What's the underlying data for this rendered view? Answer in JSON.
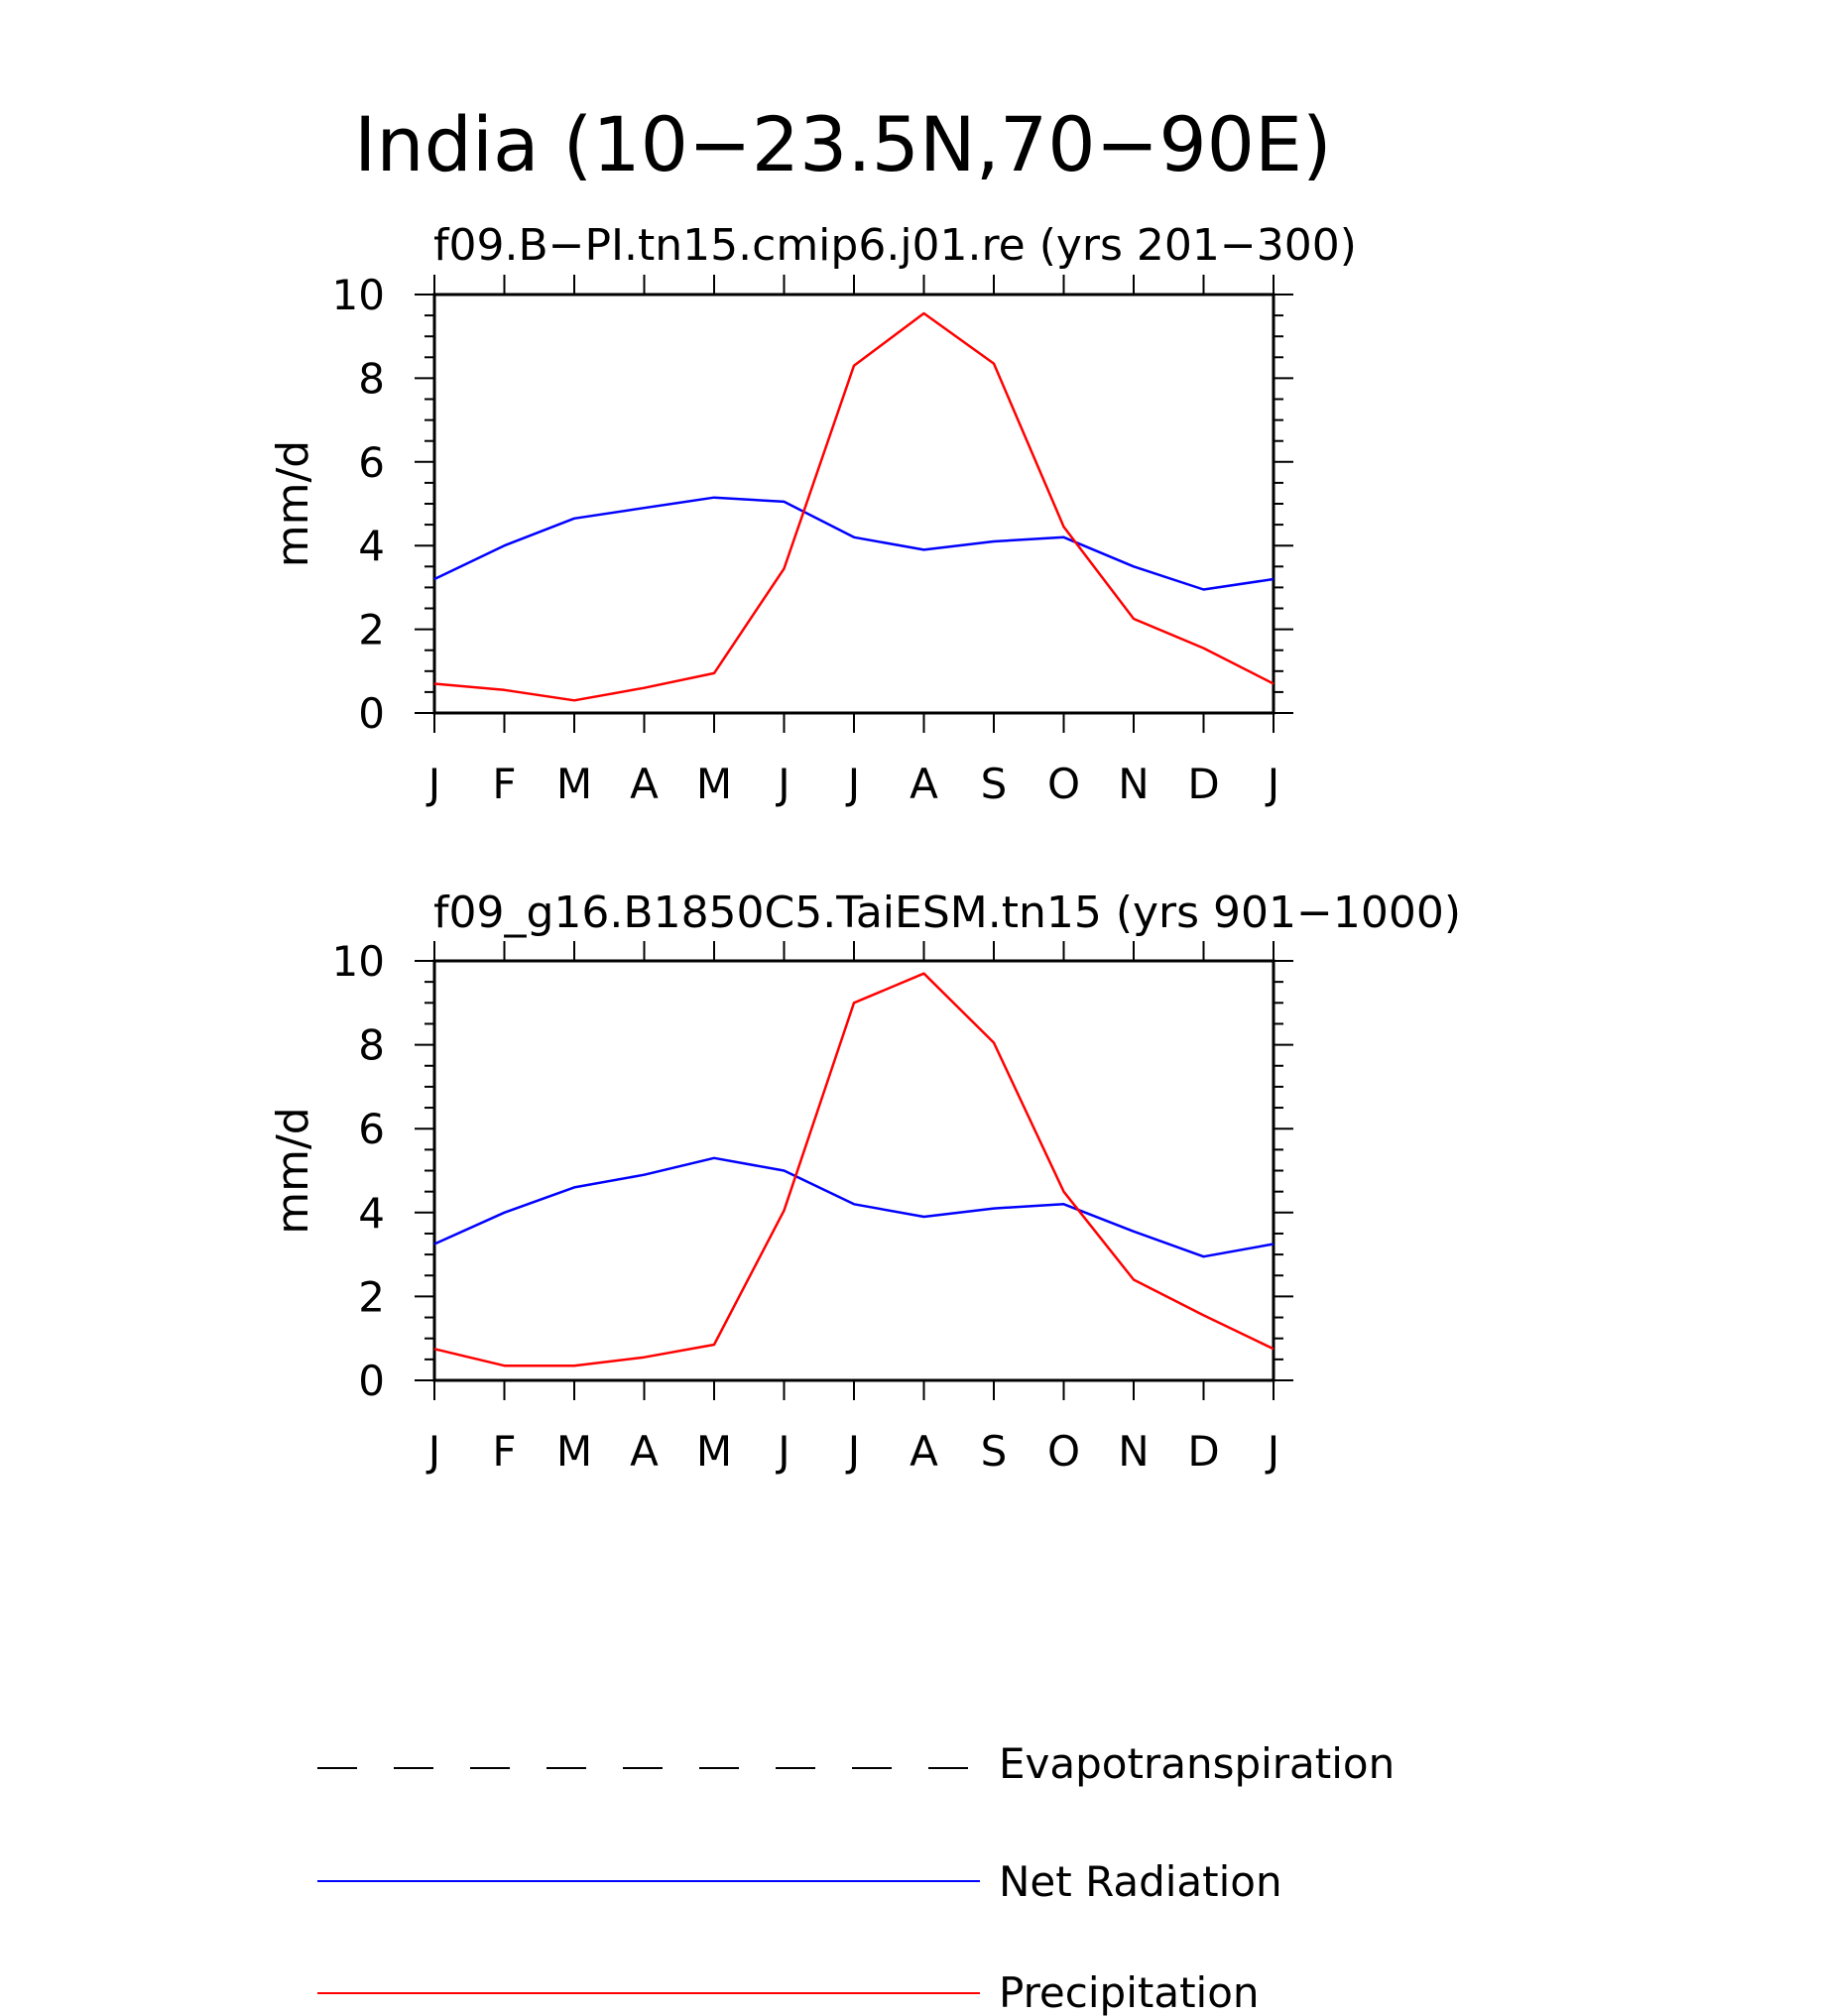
{
  "title": "India (10−23.5N,70−90E)",
  "colors": {
    "Evapotranspiration": "#000000",
    "Net Radiation": "#0000ff",
    "Precipitation": "#ff0000"
  },
  "legend": {
    "placement": "bottom",
    "entries": [
      {
        "name": "Evapotranspiration",
        "style": "dashed",
        "color": "#000000"
      },
      {
        "name": "Net Radiation",
        "style": "solid",
        "color": "#0000ff"
      },
      {
        "name": "Precipitation",
        "style": "solid",
        "color": "#ff0000"
      }
    ]
  },
  "chart_data": [
    {
      "type": "line",
      "title": "f09.B−PI.tn15.cmip6.j01.re (yrs 201−300)",
      "xlabel": "",
      "ylabel": "mm/d",
      "ylim": [
        0,
        10
      ],
      "yticks": [
        "0",
        "2",
        "4",
        "6",
        "8",
        "10"
      ],
      "categories": [
        "J",
        "F",
        "M",
        "A",
        "M",
        "J",
        "J",
        "A",
        "S",
        "O",
        "N",
        "D",
        "J"
      ],
      "grid": false,
      "series": [
        {
          "name": "Net Radiation",
          "values": [
            3.2,
            4.0,
            4.65,
            4.9,
            5.15,
            5.05,
            4.2,
            3.9,
            4.1,
            4.2,
            3.5,
            2.95,
            3.2
          ]
        },
        {
          "name": "Precipitation",
          "values": [
            0.7,
            0.55,
            0.3,
            0.6,
            0.95,
            3.45,
            8.3,
            9.55,
            8.35,
            4.45,
            2.25,
            1.55,
            0.7
          ]
        }
      ]
    },
    {
      "type": "line",
      "title": "f09_g16.B1850C5.TaiESM.tn15 (yrs 901−1000)",
      "xlabel": "",
      "ylabel": "mm/d",
      "ylim": [
        0,
        10
      ],
      "yticks": [
        "0",
        "2",
        "4",
        "6",
        "8",
        "10"
      ],
      "categories": [
        "J",
        "F",
        "M",
        "A",
        "M",
        "J",
        "J",
        "A",
        "S",
        "O",
        "N",
        "D",
        "J"
      ],
      "grid": false,
      "series": [
        {
          "name": "Net Radiation",
          "values": [
            3.25,
            4.0,
            4.6,
            4.9,
            5.3,
            5.0,
            4.2,
            3.9,
            4.1,
            4.2,
            3.55,
            2.95,
            3.25
          ]
        },
        {
          "name": "Precipitation",
          "values": [
            0.75,
            0.35,
            0.35,
            0.55,
            0.85,
            4.05,
            9.0,
            9.7,
            8.05,
            4.5,
            2.4,
            1.55,
            0.75
          ]
        }
      ]
    }
  ]
}
